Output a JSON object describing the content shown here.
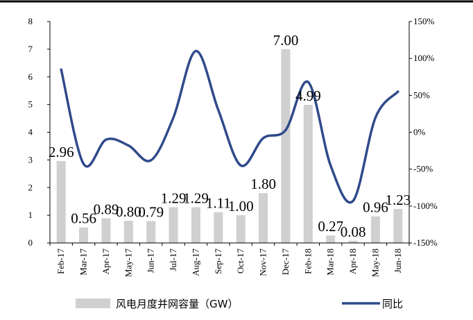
{
  "chart_data": {
    "type": "bar",
    "categories": [
      "Feb-17",
      "Mar-17",
      "Apr-17",
      "May-17",
      "Jun-17",
      "Jul-17",
      "Aug-17",
      "Sep-17",
      "Oct-17",
      "Nov-17",
      "Dec-17",
      "Feb-18",
      "Mar-18",
      "Apr-18",
      "May-18",
      "Jun-18"
    ],
    "series": [
      {
        "name": "风电月度并网容量（GW）",
        "type": "bar",
        "axis": "left",
        "color": "#d0d0d0",
        "values": [
          2.96,
          0.56,
          0.89,
          0.8,
          0.79,
          1.29,
          1.29,
          1.11,
          1.0,
          1.8,
          7.0,
          4.99,
          0.27,
          0.08,
          0.96,
          1.23
        ],
        "labels": [
          "2.96",
          "0.56",
          "0.89",
          "0.80",
          "0.79",
          "1.29",
          "1.29",
          "1.11",
          "1.00",
          "1.80",
          "7.00",
          "4.99",
          "0.27",
          "0.08",
          "0.96",
          "1.23"
        ]
      },
      {
        "name": "同比",
        "type": "line",
        "axis": "right",
        "color": "#2f4a8a",
        "values": [
          85,
          -43,
          -10,
          -18,
          -38,
          20,
          110,
          30,
          -45,
          -8,
          3,
          68,
          -45,
          -93,
          20,
          55
        ]
      }
    ],
    "y_left": {
      "min": 0,
      "max": 8,
      "ticks": [
        "0",
        "1",
        "2",
        "3",
        "4",
        "5",
        "6",
        "7",
        "8"
      ]
    },
    "y_right": {
      "min": -150,
      "max": 150,
      "ticks": [
        "-150%",
        "-100%",
        "-50%",
        "0%",
        "50%",
        "100%",
        "150%"
      ]
    },
    "legend_position": "bottom",
    "grid": false
  }
}
